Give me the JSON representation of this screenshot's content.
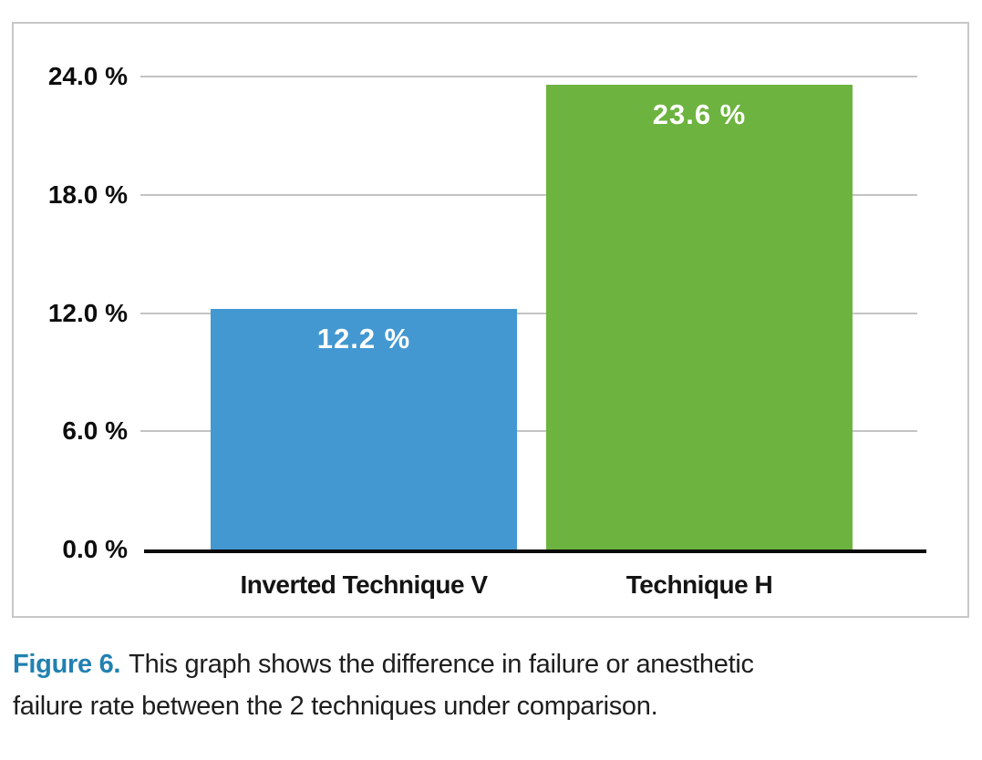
{
  "chart_data": {
    "type": "bar",
    "categories": [
      "Inverted Technique V",
      "Technique H"
    ],
    "values": [
      12.2,
      23.6
    ],
    "value_labels": [
      "12.2 %",
      "23.6 %"
    ],
    "bar_colors": [
      "#4398d1",
      "#6db33f"
    ],
    "value_label_color": "#ffffff",
    "y_ticks": [
      {
        "value": 0,
        "label": "0.0 %"
      },
      {
        "value": 6,
        "label": "6.0 %"
      },
      {
        "value": 12,
        "label": "12.0 %"
      },
      {
        "value": 18,
        "label": "18.0 %"
      },
      {
        "value": 24,
        "label": "24.0 %"
      }
    ],
    "ylim": [
      0,
      24
    ],
    "grid": true,
    "legend": "none",
    "title": "",
    "xlabel": "",
    "ylabel": ""
  },
  "caption": {
    "figure_label": "Figure 6.",
    "line1": "This graph shows the difference in failure or anesthetic",
    "line2": "failure rate between the 2 techniques under comparison.",
    "label_color": "#2181b1"
  },
  "colors": {
    "panel_border": "#c7c7c7",
    "gridline": "#c3c3c3",
    "axis": "#0a0a0a",
    "background": "#ffffff"
  }
}
